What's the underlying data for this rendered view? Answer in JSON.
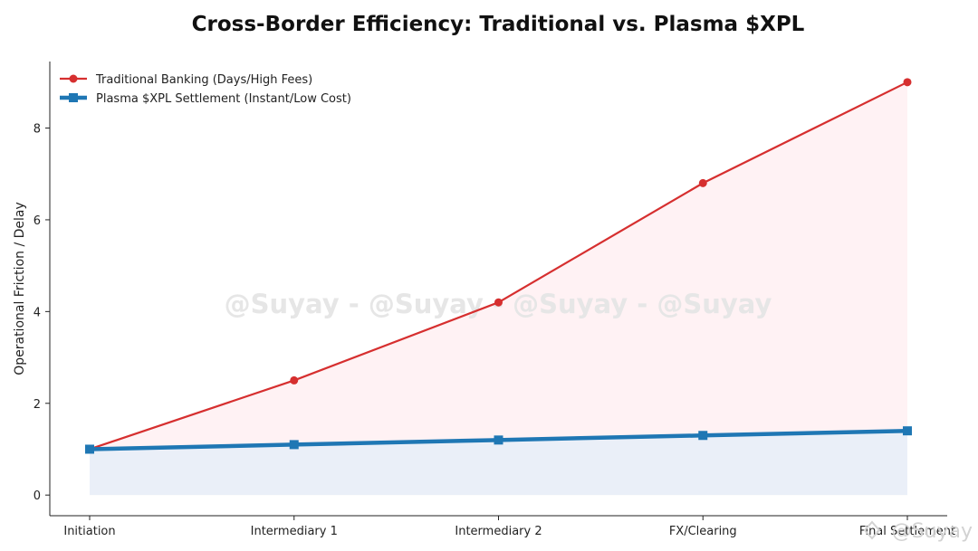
{
  "chart_data": {
    "type": "area",
    "title": "Cross-Border Efficiency: Traditional vs. Plasma $XPL",
    "xlabel": "",
    "ylabel": "Operational Friction / Delay",
    "categories": [
      "Initiation",
      "Intermediary 1",
      "Intermediary 2",
      "FX/Clearing",
      "Final Settlement"
    ],
    "ylim": [
      -0.45,
      9.45
    ],
    "yticks": [
      0,
      2,
      4,
      6,
      8
    ],
    "grid": false,
    "legend_position": "top-left",
    "series": [
      {
        "name": "Traditional Banking (Days/High Fees)",
        "values": [
          1.0,
          2.5,
          4.2,
          6.8,
          9.0
        ],
        "color": "#d62f2f",
        "fill": "#fff2f4",
        "marker": "circle"
      },
      {
        "name": "Plasma $XPL Settlement (Instant/Low Cost)",
        "values": [
          1.0,
          1.1,
          1.2,
          1.3,
          1.4
        ],
        "color": "#1f77b4",
        "fill": "#eaeff8",
        "marker": "square"
      }
    ],
    "watermark": "@Suyay - @Suyay - @Suyay - @Suyay",
    "corner_watermark": "@Suyay"
  }
}
